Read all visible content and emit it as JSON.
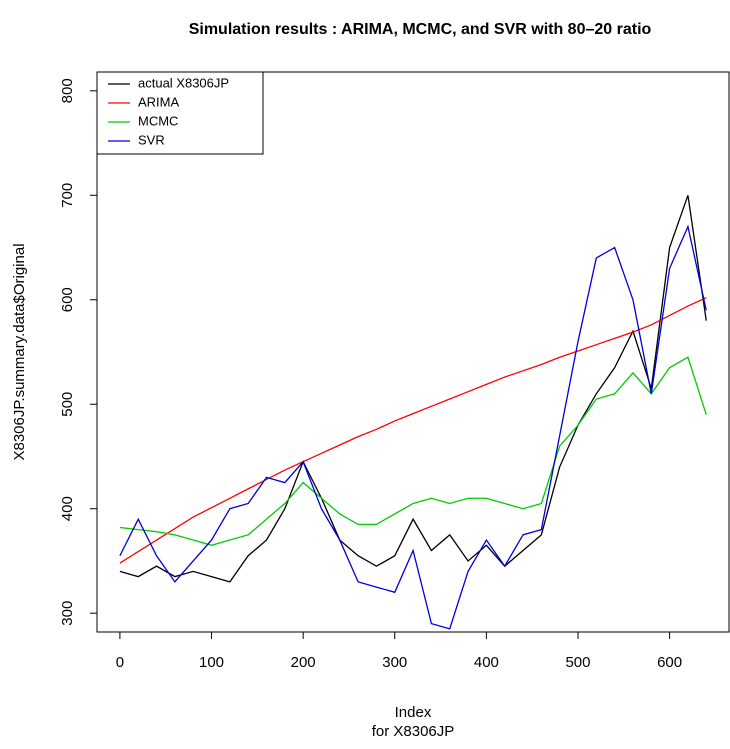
{
  "chart_data": {
    "type": "line",
    "title": "Simulation results : ARIMA, MCMC, and SVR with 80–20 ratio",
    "x_label": "Index",
    "x_sublabel": "for X8306JP",
    "y_label": "X8306JP.summary.data$Original",
    "x": [
      0,
      20,
      40,
      60,
      80,
      100,
      120,
      140,
      160,
      180,
      200,
      220,
      240,
      260,
      280,
      300,
      320,
      340,
      360,
      380,
      400,
      420,
      440,
      460,
      480,
      500,
      520,
      540,
      560,
      580,
      600,
      620,
      640
    ],
    "series": [
      {
        "name": "actual X8306JP",
        "color": "#000000",
        "values": [
          340,
          335,
          345,
          335,
          340,
          335,
          330,
          355,
          370,
          400,
          445,
          410,
          370,
          355,
          345,
          355,
          390,
          360,
          375,
          350,
          365,
          345,
          360,
          375,
          440,
          480,
          510,
          535,
          570,
          515,
          650,
          700,
          580
        ]
      },
      {
        "name": "ARIMA",
        "color": "#ff0000",
        "values": [
          348,
          359,
          370,
          381,
          392,
          401,
          410,
          419,
          428,
          437,
          445,
          453,
          461,
          469,
          476,
          484,
          491,
          498,
          505,
          512,
          519,
          526,
          532,
          538,
          545,
          551,
          557,
          563,
          569,
          576,
          585,
          594,
          602
        ]
      },
      {
        "name": "MCMC",
        "color": "#00cc00",
        "values": [
          382,
          380,
          378,
          375,
          370,
          365,
          370,
          375,
          390,
          405,
          425,
          410,
          395,
          385,
          385,
          395,
          405,
          410,
          405,
          410,
          410,
          405,
          400,
          405,
          460,
          480,
          505,
          510,
          530,
          510,
          535,
          545,
          490
        ]
      },
      {
        "name": "SVR",
        "color": "#0000dd",
        "values": [
          355,
          390,
          355,
          330,
          350,
          370,
          400,
          405,
          430,
          425,
          445,
          400,
          370,
          330,
          325,
          320,
          360,
          290,
          285,
          340,
          370,
          345,
          375,
          380,
          470,
          560,
          640,
          650,
          600,
          510,
          630,
          670,
          590
        ]
      }
    ],
    "xlim": [
      -25,
      667
    ],
    "ylim": [
      282,
      818
    ],
    "xticks": [
      0,
      100,
      200,
      300,
      400,
      500,
      600
    ],
    "yticks": [
      300,
      400,
      500,
      600,
      700,
      800
    ],
    "legend": "top-left"
  }
}
